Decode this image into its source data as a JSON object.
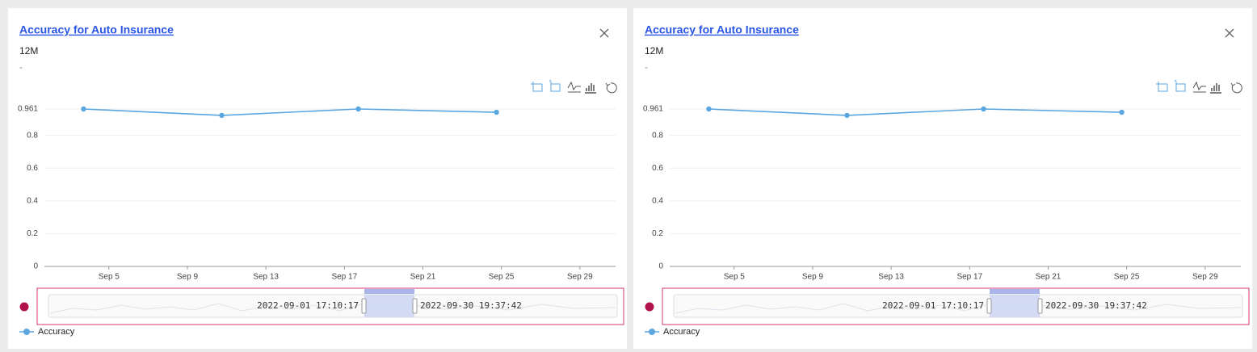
{
  "chart_data": [
    {
      "type": "line",
      "title": "Accuracy for Auto Insurance",
      "subtitle": "12M",
      "caption": "-",
      "x": [
        "2022-09-03 17:00:00",
        "2022-09-10 18:00:00",
        "2022-09-17 17:00:00",
        "2022-09-24 18:00:00"
      ],
      "series": [
        {
          "name": "Accuracy",
          "color": "#5aa6e0",
          "values": [
            0.961,
            0.922,
            0.961,
            0.941
          ]
        }
      ],
      "xlim": [
        "2022-09-01 17:10:17",
        "2022-09-30 19:37:42"
      ],
      "xticks": [
        {
          "value": "2022-09-05",
          "label": "Sep 5"
        },
        {
          "value": "2022-09-09",
          "label": "Sep 9"
        },
        {
          "value": "2022-09-13",
          "label": "Sep 13"
        },
        {
          "value": "2022-09-17",
          "label": "Sep 17"
        },
        {
          "value": "2022-09-21",
          "label": "Sep 21"
        },
        {
          "value": "2022-09-25",
          "label": "Sep 25"
        },
        {
          "value": "2022-09-29",
          "label": "Sep 29"
        }
      ],
      "ylim": [
        0,
        0.961
      ],
      "yticks": [
        0,
        0.2,
        0.4,
        0.6,
        0.8,
        0.961
      ],
      "grid": true
    },
    {
      "type": "line",
      "title": "Accuracy for Auto Insurance",
      "subtitle": "12M",
      "caption": "-",
      "x": [
        "2022-09-03 17:00:00",
        "2022-09-10 18:00:00",
        "2022-09-17 17:00:00",
        "2022-09-24 18:00:00"
      ],
      "series": [
        {
          "name": "Accuracy",
          "color": "#5aa6e0",
          "values": [
            0.961,
            0.922,
            0.961,
            0.941
          ]
        }
      ],
      "xlim": [
        "2022-09-01 17:10:17",
        "2022-09-30 19:37:42"
      ],
      "xticks": [
        {
          "value": "2022-09-05",
          "label": "Sep 5"
        },
        {
          "value": "2022-09-09",
          "label": "Sep 9"
        },
        {
          "value": "2022-09-13",
          "label": "Sep 13"
        },
        {
          "value": "2022-09-17",
          "label": "Sep 17"
        },
        {
          "value": "2022-09-21",
          "label": "Sep 21"
        },
        {
          "value": "2022-09-25",
          "label": "Sep 25"
        },
        {
          "value": "2022-09-29",
          "label": "Sep 29"
        }
      ],
      "ylim": [
        0,
        0.961
      ],
      "yticks": [
        0,
        0.2,
        0.4,
        0.6,
        0.8,
        0.961
      ],
      "grid": true
    }
  ]
}
